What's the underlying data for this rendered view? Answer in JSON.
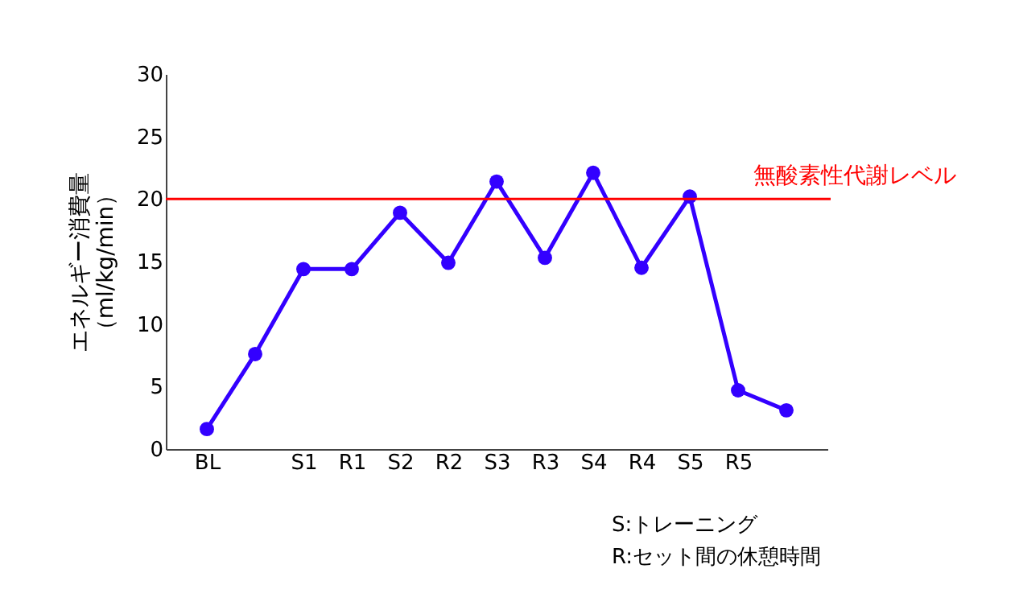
{
  "chart_data": {
    "type": "line",
    "ylabel": "エネルギー消費量（ml/kg/min）",
    "categories": [
      "BL",
      null,
      "S1",
      "R1",
      "S2",
      "R2",
      "S3",
      "R3",
      "S4",
      "R4",
      "S5",
      "R5",
      null
    ],
    "series": [
      {
        "color": "#3300ff",
        "values": [
          1.6,
          7.6,
          14.4,
          14.4,
          18.9,
          14.9,
          21.4,
          15.3,
          22.1,
          14.5,
          20.2,
          4.7,
          3.1
        ]
      }
    ],
    "ylim": [
      0,
      30
    ],
    "yticks": [
      0,
      5,
      10,
      15,
      20,
      25,
      30
    ],
    "ref_lines": [
      {
        "axis": "y",
        "value": 20,
        "label": "無酸素性代謝レベル",
        "color": "#ff0000"
      }
    ],
    "annotations": [
      "S:トレーニング",
      "R:セット間の休憩時間"
    ],
    "grid": false,
    "legend": false,
    "marker": "circle",
    "line_style": "solid"
  }
}
